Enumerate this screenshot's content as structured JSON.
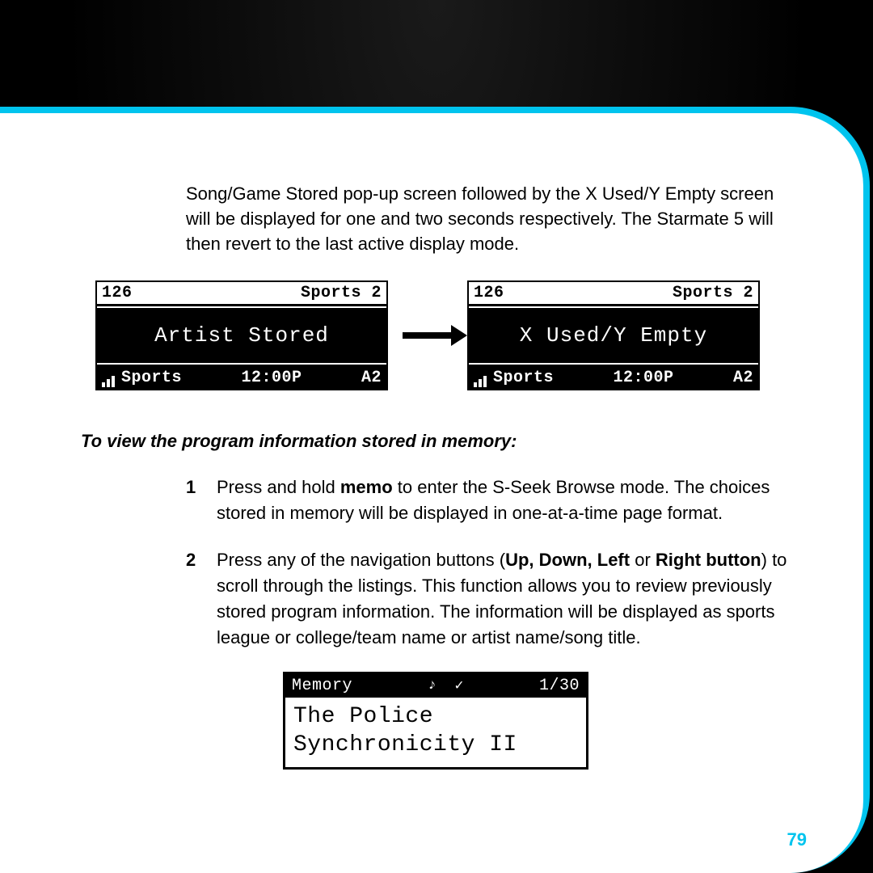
{
  "intro_text": "Song/Game Stored pop-up screen followed by the X Used/Y Empty screen will be displayed for one and two seconds respectively. The Starmate 5 will then revert to the last active display mode.",
  "screens": {
    "left": {
      "channel": "126",
      "category_top": "Sports 2",
      "center": "Artist Stored",
      "category_bottom": "Sports",
      "time": "12:00P",
      "preset": "A2"
    },
    "right": {
      "channel": "126",
      "category_top": "Sports 2",
      "center": "X Used/Y Empty",
      "category_bottom": "Sports",
      "time": "12:00P",
      "preset": "A2"
    }
  },
  "subheading": "To view the program information stored in memory:",
  "steps": {
    "s1": {
      "num": "1",
      "pre": "Press and hold ",
      "bold1": "memo",
      "post": " to enter the S-Seek Browse mode. The choices stored in memory will be displayed in one-at-a-time page format."
    },
    "s2": {
      "num": "2",
      "pre": "Press any of the navigation buttons (",
      "bold1": "Up, Down, Left",
      "mid": " or ",
      "bold2": "Right button",
      "post": ") to scroll through the listings. This function allows you to review previously stored program information. The information will be displayed as sports league or college/team name or artist name/song title."
    }
  },
  "memory_screen": {
    "label": "Memory",
    "count": "1/30",
    "line1": "The Police",
    "line2": "Synchronicity II"
  },
  "page_number": "79",
  "colors": {
    "accent": "#00c4ee",
    "bg": "#000000",
    "page_bg": "#ffffff",
    "text": "#000000"
  }
}
